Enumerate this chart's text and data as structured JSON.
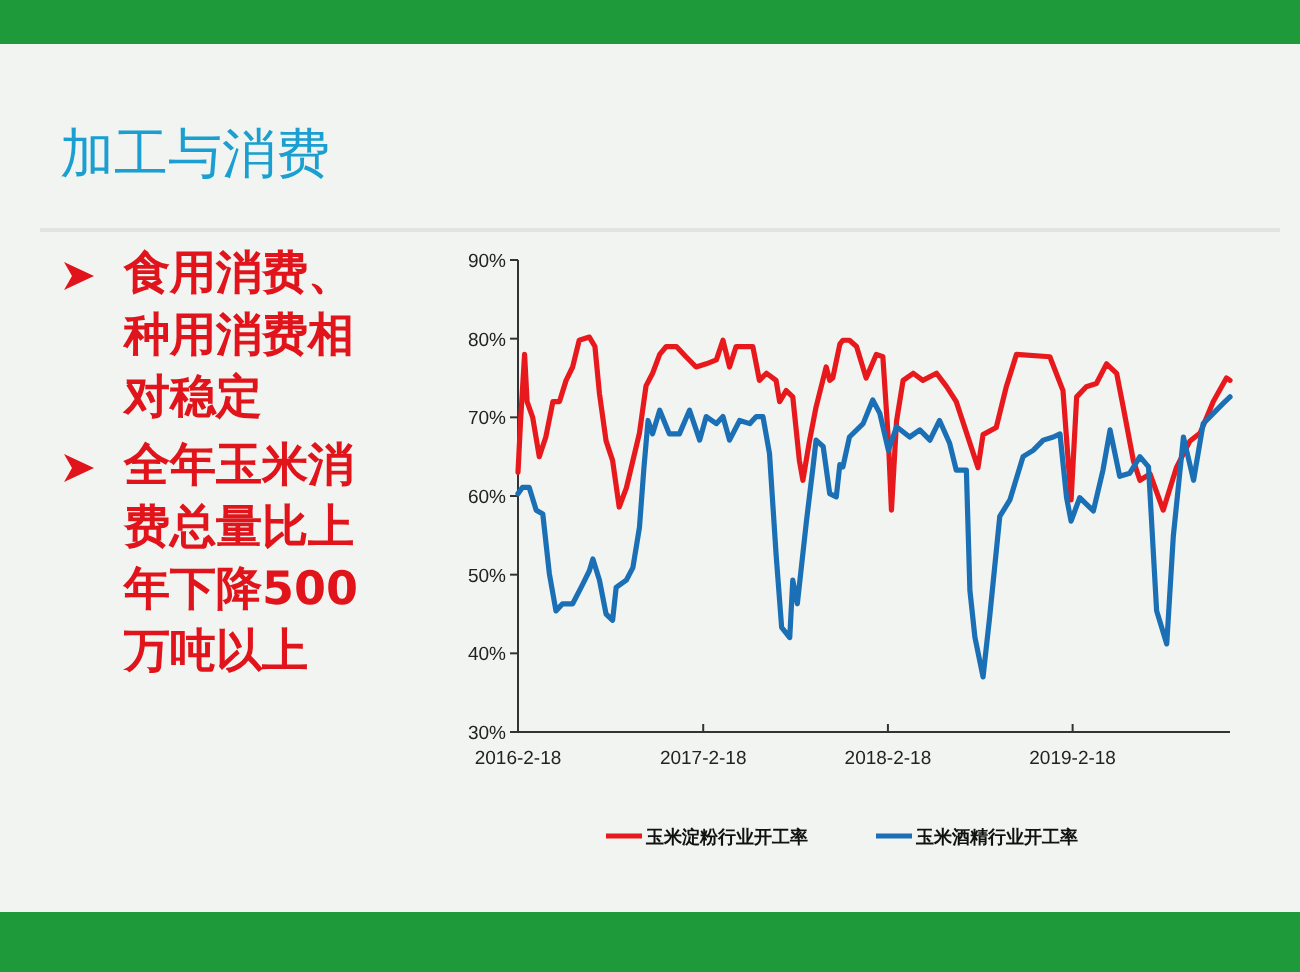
{
  "chart_data": {
    "type": "line",
    "title": "加工与消费",
    "annotations": [
      "食用消费、种用消费相对稳定",
      "全年玉米消费总量比上年下降500万吨以上"
    ],
    "xlim": [
      "2016-02-18",
      "2019-12-26"
    ],
    "xticks": [
      {
        "value": "2016-02-18",
        "label": "2016-2-18"
      },
      {
        "value": "2017-02-18",
        "label": "2017-2-18"
      },
      {
        "value": "2018-02-18",
        "label": "2018-2-18"
      },
      {
        "value": "2019-02-18",
        "label": "2019-2-18"
      }
    ],
    "ylim": [
      30,
      90
    ],
    "yticks": [
      {
        "value": 30,
        "label": "30%"
      },
      {
        "value": 40,
        "label": "40%"
      },
      {
        "value": 50,
        "label": "50%"
      },
      {
        "value": 60,
        "label": "60%"
      },
      {
        "value": 70,
        "label": "70%"
      },
      {
        "value": 80,
        "label": "80%"
      },
      {
        "value": 90,
        "label": "90%"
      }
    ],
    "legend": "bottom",
    "grid": false,
    "marker": "none",
    "line_style": "solid",
    "series": [
      {
        "name": "玉米淀粉行业开工率",
        "color": "#e8191d",
        "x": [
          "2016-02-18",
          "2016-02-23",
          "2016-03-02",
          "2016-03-07",
          "2016-03-18",
          "2016-03-31",
          "2016-04-13",
          "2016-04-27",
          "2016-05-10",
          "2016-05-23",
          "2016-06-05",
          "2016-06-18",
          "2016-07-08",
          "2016-07-19",
          "2016-07-28",
          "2016-08-10",
          "2016-08-23",
          "2016-09-05",
          "2016-09-19",
          "2016-10-02",
          "2016-10-15",
          "2016-10-28",
          "2016-11-10",
          "2016-11-24",
          "2016-12-07",
          "2016-12-27",
          "2017-01-15",
          "2017-02-04",
          "2017-02-24",
          "2017-03-16",
          "2017-03-29",
          "2017-04-11",
          "2017-04-24",
          "2017-05-27",
          "2017-06-09",
          "2017-06-23",
          "2017-07-12",
          "2017-07-19",
          "2017-08-01",
          "2017-08-14",
          "2017-08-27",
          "2017-09-03",
          "2017-09-16",
          "2017-09-29",
          "2017-10-19",
          "2017-10-26",
          "2017-11-01",
          "2017-11-15",
          "2017-11-21",
          "2017-12-04",
          "2017-12-18",
          "2018-01-06",
          "2018-01-26",
          "2018-02-08",
          "2018-02-19",
          "2018-02-25",
          "2018-03-07",
          "2018-03-20",
          "2018-04-09",
          "2018-04-28",
          "2018-05-25",
          "2018-06-14",
          "2018-07-03",
          "2018-08-15",
          "2018-08-25",
          "2018-09-20",
          "2018-10-10",
          "2018-10-30",
          "2019-01-04",
          "2019-01-30",
          "2019-02-15",
          "2019-02-26",
          "2019-03-17",
          "2019-04-06",
          "2019-04-26",
          "2019-05-16",
          "2019-05-29",
          "2019-06-18",
          "2019-07-01",
          "2019-07-21",
          "2019-08-16",
          "2019-09-11",
          "2019-10-08",
          "2019-10-28",
          "2019-11-23",
          "2019-12-19",
          "2019-12-26"
        ],
        "values": [
          63,
          69.5,
          78,
          72,
          70,
          65,
          67.5,
          72,
          72,
          74.7,
          76.4,
          79.8,
          80.2,
          79,
          73,
          67,
          64.5,
          58.6,
          61,
          64.5,
          68,
          74,
          75.6,
          78,
          79,
          79,
          77.7,
          76.4,
          76.8,
          77.3,
          79.8,
          76.4,
          79,
          79,
          74.7,
          75.6,
          74.7,
          72,
          73.4,
          72.6,
          64.5,
          62,
          67,
          71.3,
          76.4,
          74.7,
          75,
          79.3,
          79.8,
          79.8,
          79,
          75,
          78,
          77.7,
          67,
          58.2,
          69.5,
          74.7,
          75.6,
          74.7,
          75.6,
          73.9,
          72,
          63.6,
          67.8,
          68.7,
          73.9,
          78,
          77.7,
          73.4,
          59.5,
          72.6,
          73.9,
          74.3,
          76.8,
          75.6,
          71.3,
          64.5,
          62,
          62.8,
          58.2,
          63.6,
          67,
          68,
          72,
          75,
          74.7
        ]
      },
      {
        "name": "玉米酒精行业开工率",
        "color": "#1a6fb5",
        "x": [
          "2016-02-18",
          "2016-02-27",
          "2016-03-11",
          "2016-03-25",
          "2016-04-07",
          "2016-04-20",
          "2016-05-03",
          "2016-05-16",
          "2016-06-05",
          "2016-06-25",
          "2016-07-08",
          "2016-07-15",
          "2016-07-28",
          "2016-08-10",
          "2016-08-23",
          "2016-08-30",
          "2016-09-19",
          "2016-10-02",
          "2016-10-15",
          "2016-10-24",
          "2016-11-01",
          "2016-11-10",
          "2016-11-24",
          "2016-12-13",
          "2017-01-02",
          "2017-01-22",
          "2017-02-11",
          "2017-02-24",
          "2017-03-16",
          "2017-03-29",
          "2017-04-11",
          "2017-05-01",
          "2017-05-21",
          "2017-06-03",
          "2017-06-16",
          "2017-06-29",
          "2017-07-12",
          "2017-07-23",
          "2017-08-08",
          "2017-08-14",
          "2017-08-23",
          "2017-09-10",
          "2017-09-23",
          "2017-09-29",
          "2017-10-13",
          "2017-10-26",
          "2017-11-08",
          "2017-11-15",
          "2017-11-21",
          "2017-12-04",
          "2017-12-31",
          "2018-01-19",
          "2018-02-02",
          "2018-02-19",
          "2018-03-07",
          "2018-04-02",
          "2018-04-22",
          "2018-05-12",
          "2018-05-31",
          "2018-06-20",
          "2018-07-03",
          "2018-07-23",
          "2018-07-30",
          "2018-08-09",
          "2018-08-25",
          "2018-09-07",
          "2018-09-27",
          "2018-10-17",
          "2018-11-12",
          "2018-12-02",
          "2018-12-22",
          "2019-01-11",
          "2019-01-24",
          "2019-02-06",
          "2019-02-15",
          "2019-03-04",
          "2019-03-31",
          "2019-04-19",
          "2019-05-03",
          "2019-05-22",
          "2019-06-11",
          "2019-07-01",
          "2019-07-18",
          "2019-08-03",
          "2019-08-23",
          "2019-09-05",
          "2019-09-25",
          "2019-10-15",
          "2019-11-03",
          "2019-11-23",
          "2019-12-13",
          "2019-12-26"
        ],
        "values": [
          60.3,
          61.1,
          61.1,
          58.2,
          57.7,
          50.1,
          45.4,
          46.3,
          46.3,
          48.8,
          50.5,
          52,
          49.3,
          45,
          44.2,
          48.4,
          49.3,
          50.9,
          56,
          63.7,
          69.6,
          67.9,
          70.9,
          67.9,
          67.9,
          70.9,
          67.1,
          70.1,
          69.2,
          70.1,
          67.1,
          69.6,
          69.2,
          70.1,
          70.1,
          65.4,
          52.6,
          43.3,
          42,
          49.3,
          46.3,
          56.8,
          63.7,
          67.1,
          66.3,
          60.3,
          59.9,
          64,
          63.7,
          67.5,
          69.2,
          72.2,
          70.5,
          65.8,
          68.8,
          67.5,
          68.4,
          67.1,
          69.6,
          66.7,
          63.3,
          63.3,
          48,
          42,
          37,
          44.6,
          57.4,
          59.5,
          65,
          65.8,
          67.1,
          67.5,
          67.9,
          59.8,
          56.8,
          59.8,
          58.1,
          63.3,
          68.4,
          62.5,
          62.9,
          65,
          63.7,
          45.4,
          41.2,
          54.9,
          67.5,
          62,
          69.2,
          70.5,
          71.8,
          72.6
        ]
      }
    ]
  }
}
